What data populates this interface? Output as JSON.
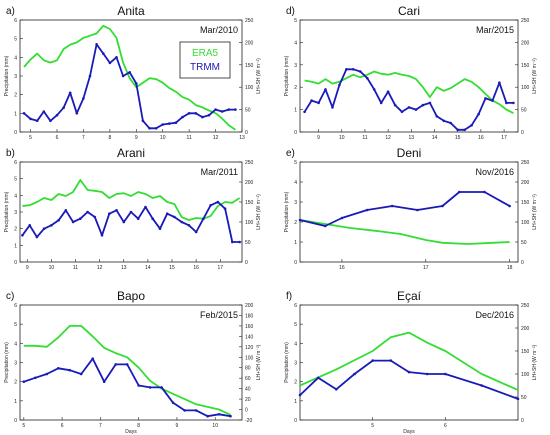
{
  "chart_data": [
    {
      "type": "line",
      "letter": "a)",
      "title": "Anita",
      "date_label": "Mar/2010",
      "ylabel": "Precipitation (mm)",
      "y2label": "LH+SH (W m⁻²)",
      "xlabel": "",
      "xlim": [
        4.6,
        13.0
      ],
      "xticks": [
        5,
        6,
        7,
        8,
        9,
        10,
        11,
        12,
        13
      ],
      "ylim": [
        0,
        6
      ],
      "yticks": [
        0,
        1,
        2,
        3,
        4,
        5,
        6
      ],
      "y2lim": [
        0,
        250
      ],
      "y2ticks": [
        0,
        50,
        100,
        150,
        200,
        250
      ],
      "legend": [
        "ERA5",
        "TRMM"
      ],
      "legend_position": "top-right",
      "series": [
        {
          "name": "ERA5",
          "color": "#33dd33",
          "axis": "right",
          "markers": false,
          "x": [
            4.75,
            5.0,
            5.25,
            5.5,
            5.75,
            6.0,
            6.25,
            6.5,
            6.75,
            7.0,
            7.25,
            7.5,
            7.75,
            8.0,
            8.25,
            8.5,
            8.75,
            9.0,
            9.25,
            9.5,
            9.75,
            10.0,
            10.25,
            10.5,
            10.75,
            11.0,
            11.25,
            11.5,
            11.75,
            12.0,
            12.25,
            12.5,
            12.75
          ],
          "y": [
            145,
            162,
            175,
            160,
            155,
            160,
            185,
            195,
            200,
            210,
            215,
            220,
            237,
            230,
            210,
            155,
            120,
            100,
            110,
            120,
            118,
            110,
            98,
            90,
            78,
            72,
            60,
            55,
            48,
            42,
            30,
            15,
            5
          ]
        },
        {
          "name": "TRMM",
          "color": "#1a1ab8",
          "axis": "left",
          "markers": true,
          "x": [
            4.75,
            5.0,
            5.25,
            5.5,
            5.75,
            6.0,
            6.25,
            6.5,
            6.75,
            7.0,
            7.25,
            7.5,
            7.75,
            8.0,
            8.25,
            8.5,
            8.75,
            9.0,
            9.25,
            9.5,
            9.75,
            10.0,
            10.25,
            10.5,
            10.75,
            11.0,
            11.25,
            11.5,
            11.75,
            12.0,
            12.25,
            12.5,
            12.75
          ],
          "y": [
            1.0,
            0.7,
            0.6,
            1.1,
            0.6,
            0.9,
            1.3,
            2.1,
            1.0,
            1.8,
            3.0,
            4.7,
            4.2,
            3.7,
            4.0,
            3.0,
            3.2,
            2.6,
            0.6,
            0.2,
            0.2,
            0.4,
            0.45,
            0.5,
            0.8,
            1.0,
            1.0,
            0.8,
            0.9,
            1.2,
            1.1,
            1.2,
            1.2
          ]
        }
      ]
    },
    {
      "type": "line",
      "letter": "d)",
      "title": "Cari",
      "date_label": "Mar/2015",
      "ylabel": "Precipitation (mm)",
      "y2label": "LH+SH (W m⁻²)",
      "xlabel": "",
      "xlim": [
        8.2,
        17.6
      ],
      "xticks": [
        9,
        10,
        11,
        12,
        13,
        14,
        15,
        16,
        17
      ],
      "ylim": [
        0,
        5
      ],
      "yticks": [
        0,
        1,
        2,
        3,
        4,
        5
      ],
      "y2lim": [
        0,
        250
      ],
      "y2ticks": [
        0,
        50,
        100,
        150,
        200,
        250
      ],
      "legend": [],
      "legend_position": "",
      "series": [
        {
          "name": "ERA5",
          "color": "#33dd33",
          "axis": "right",
          "markers": false,
          "x": [
            8.4,
            8.7,
            9.0,
            9.3,
            9.6,
            9.9,
            10.2,
            10.5,
            10.8,
            11.1,
            11.4,
            11.7,
            12.0,
            12.3,
            12.6,
            12.9,
            13.2,
            13.5,
            13.8,
            14.1,
            14.4,
            14.7,
            15.0,
            15.3,
            15.6,
            15.9,
            16.2,
            16.5,
            16.8,
            17.1,
            17.4
          ],
          "y": [
            115,
            112,
            108,
            118,
            108,
            112,
            120,
            128,
            122,
            128,
            135,
            130,
            128,
            132,
            128,
            125,
            118,
            100,
            78,
            100,
            92,
            98,
            108,
            118,
            112,
            100,
            85,
            70,
            62,
            50,
            42
          ]
        },
        {
          "name": "TRMM",
          "color": "#1a1ab8",
          "axis": "left",
          "markers": true,
          "x": [
            8.4,
            8.7,
            9.0,
            9.3,
            9.6,
            9.9,
            10.2,
            10.5,
            10.8,
            11.1,
            11.4,
            11.7,
            12.0,
            12.3,
            12.6,
            12.9,
            13.2,
            13.5,
            13.8,
            14.1,
            14.4,
            14.7,
            15.0,
            15.3,
            15.6,
            15.9,
            16.2,
            16.5,
            16.8,
            17.1,
            17.4
          ],
          "y": [
            0.9,
            1.4,
            1.3,
            1.9,
            1.1,
            2.1,
            2.8,
            2.8,
            2.7,
            2.4,
            1.9,
            1.3,
            1.8,
            1.2,
            0.9,
            1.1,
            1.0,
            1.2,
            1.3,
            0.7,
            0.5,
            0.4,
            0.1,
            0.1,
            0.3,
            0.8,
            1.5,
            1.4,
            2.2,
            1.3,
            1.3
          ]
        }
      ]
    },
    {
      "type": "line",
      "letter": "b)",
      "title": "Arani",
      "date_label": "Mar/2011",
      "ylabel": "Precipitation (mm)",
      "y2label": "LH+SH (W m⁻²)",
      "xlabel": "",
      "xlim": [
        8.7,
        17.9
      ],
      "xticks": [
        9,
        10,
        11,
        12,
        13,
        14,
        15,
        16,
        17
      ],
      "ylim": [
        0,
        6
      ],
      "yticks": [
        0,
        1,
        2,
        3,
        4,
        5,
        6
      ],
      "y2lim": [
        0,
        250
      ],
      "y2ticks": [
        0,
        50,
        100,
        150,
        200,
        250
      ],
      "legend": [],
      "legend_position": "",
      "series": [
        {
          "name": "ERA5",
          "color": "#33dd33",
          "axis": "right",
          "markers": false,
          "x": [
            8.8,
            9.1,
            9.4,
            9.7,
            10.0,
            10.3,
            10.6,
            10.9,
            11.2,
            11.5,
            11.8,
            12.1,
            12.4,
            12.7,
            13.0,
            13.3,
            13.6,
            13.9,
            14.2,
            14.5,
            14.8,
            15.1,
            15.4,
            15.7,
            16.0,
            16.3,
            16.6,
            16.9,
            17.2,
            17.5,
            17.8
          ],
          "y": [
            140,
            142,
            150,
            160,
            155,
            170,
            165,
            175,
            205,
            180,
            178,
            175,
            160,
            170,
            172,
            165,
            175,
            170,
            160,
            165,
            150,
            145,
            112,
            105,
            110,
            108,
            115,
            140,
            150,
            148,
            160
          ]
        },
        {
          "name": "TRMM",
          "color": "#1a1ab8",
          "axis": "left",
          "markers": true,
          "x": [
            8.8,
            9.1,
            9.4,
            9.7,
            10.0,
            10.3,
            10.6,
            10.9,
            11.2,
            11.5,
            11.8,
            12.1,
            12.4,
            12.7,
            13.0,
            13.3,
            13.6,
            13.9,
            14.2,
            14.5,
            14.8,
            15.1,
            15.4,
            15.7,
            16.0,
            16.3,
            16.6,
            16.9,
            17.2,
            17.5,
            17.8
          ],
          "y": [
            1.6,
            2.2,
            1.5,
            2.0,
            2.2,
            2.5,
            3.1,
            2.4,
            2.6,
            3.0,
            2.7,
            1.6,
            2.9,
            3.1,
            2.4,
            3.0,
            2.6,
            3.3,
            2.6,
            2.0,
            2.9,
            2.7,
            2.4,
            2.2,
            1.8,
            2.6,
            3.4,
            3.6,
            3.2,
            1.2,
            1.2
          ]
        }
      ]
    },
    {
      "type": "line",
      "letter": "e)",
      "title": "Deni",
      "date_label": "Nov/2016",
      "ylabel": "Precipitation (mm)",
      "y2label": "LH+SH (W m⁻²)",
      "xlabel": "",
      "xlim": [
        15.5,
        18.1
      ],
      "xticks": [
        16,
        17,
        18
      ],
      "ylim": [
        0,
        5
      ],
      "yticks": [
        0,
        1,
        2,
        3,
        4,
        5
      ],
      "y2lim": [
        0,
        250
      ],
      "y2ticks": [
        0,
        50,
        100,
        150,
        200,
        250
      ],
      "legend": [],
      "legend_position": "",
      "series": [
        {
          "name": "ERA5",
          "color": "#33dd33",
          "axis": "right",
          "markers": false,
          "x": [
            15.5,
            15.8,
            16.1,
            16.4,
            16.7,
            17.0,
            17.2,
            17.5,
            17.8,
            18.0
          ],
          "y": [
            105,
            95,
            85,
            78,
            70,
            55,
            48,
            45,
            48,
            50
          ]
        },
        {
          "name": "TRMM",
          "color": "#1a1ab8",
          "axis": "left",
          "markers": true,
          "x": [
            15.5,
            15.8,
            16.0,
            16.3,
            16.6,
            16.9,
            17.2,
            17.4,
            17.7,
            18.0
          ],
          "y": [
            2.1,
            1.8,
            2.2,
            2.6,
            2.8,
            2.6,
            2.8,
            3.5,
            3.5,
            2.8
          ]
        }
      ]
    },
    {
      "type": "line",
      "letter": "c)",
      "title": "Bapo",
      "date_label": "Feb/2015",
      "ylabel": "Precipitation (mm)",
      "y2label": "LH+SH (W m⁻²)",
      "xlabel": "Days",
      "xlim": [
        4.9,
        10.7
      ],
      "xticks": [
        5,
        6,
        7,
        8,
        9,
        10
      ],
      "ylim": [
        0,
        6
      ],
      "yticks": [
        0,
        1,
        2,
        3,
        4,
        5,
        6
      ],
      "y2lim": [
        -20,
        200
      ],
      "y2ticks": [
        -20,
        0,
        20,
        40,
        60,
        80,
        100,
        120,
        140,
        160,
        180,
        200
      ],
      "legend": [],
      "legend_position": "",
      "series": [
        {
          "name": "ERA5",
          "color": "#33dd33",
          "axis": "right",
          "markers": false,
          "x": [
            5.0,
            5.3,
            5.6,
            5.9,
            6.2,
            6.5,
            6.8,
            7.1,
            7.4,
            7.7,
            8.0,
            8.3,
            8.6,
            8.9,
            9.2,
            9.5,
            9.8,
            10.1,
            10.4
          ],
          "y": [
            122,
            122,
            120,
            138,
            160,
            160,
            140,
            118,
            108,
            100,
            80,
            55,
            40,
            30,
            20,
            10,
            5,
            0,
            -10
          ]
        },
        {
          "name": "TRMM",
          "color": "#1a1ab8",
          "axis": "left",
          "markers": true,
          "x": [
            5.0,
            5.3,
            5.6,
            5.9,
            6.2,
            6.5,
            6.8,
            7.1,
            7.4,
            7.7,
            8.0,
            8.3,
            8.6,
            8.9,
            9.2,
            9.5,
            9.8,
            10.1,
            10.4
          ],
          "y": [
            2.0,
            2.2,
            2.4,
            2.7,
            2.6,
            2.4,
            3.2,
            2.0,
            2.9,
            2.9,
            1.8,
            1.7,
            1.7,
            0.9,
            0.5,
            0.5,
            0.2,
            0.3,
            0.2
          ]
        }
      ]
    },
    {
      "type": "line",
      "letter": "f)",
      "title": "Eçaí",
      "date_label": "Dec/2016",
      "ylabel": "Precipitation (mm)",
      "y2label": "LH+SH (W m⁻²)",
      "xlabel": "Days",
      "xlim": [
        4.0,
        7.0
      ],
      "xticks": [
        5,
        6
      ],
      "ylim": [
        0,
        6
      ],
      "yticks": [
        0,
        1,
        2,
        3,
        4,
        5,
        6
      ],
      "y2lim": [
        0,
        250
      ],
      "y2ticks": [
        0,
        50,
        100,
        150,
        200,
        250
      ],
      "legend": [],
      "legend_position": "",
      "series": [
        {
          "name": "ERA5",
          "color": "#33dd33",
          "axis": "right",
          "markers": false,
          "x": [
            4.0,
            4.5,
            5.0,
            5.25,
            5.5,
            5.75,
            6.0,
            6.5,
            7.0
          ],
          "y": [
            75,
            110,
            150,
            180,
            190,
            168,
            150,
            100,
            65
          ]
        },
        {
          "name": "TRMM",
          "color": "#1a1ab8",
          "axis": "left",
          "markers": true,
          "x": [
            4.0,
            4.25,
            4.5,
            4.75,
            5.0,
            5.25,
            5.5,
            5.75,
            6.0,
            6.5,
            7.0
          ],
          "y": [
            1.3,
            2.2,
            1.6,
            2.4,
            3.1,
            3.1,
            2.5,
            2.4,
            2.4,
            1.8,
            1.1
          ]
        }
      ]
    }
  ]
}
